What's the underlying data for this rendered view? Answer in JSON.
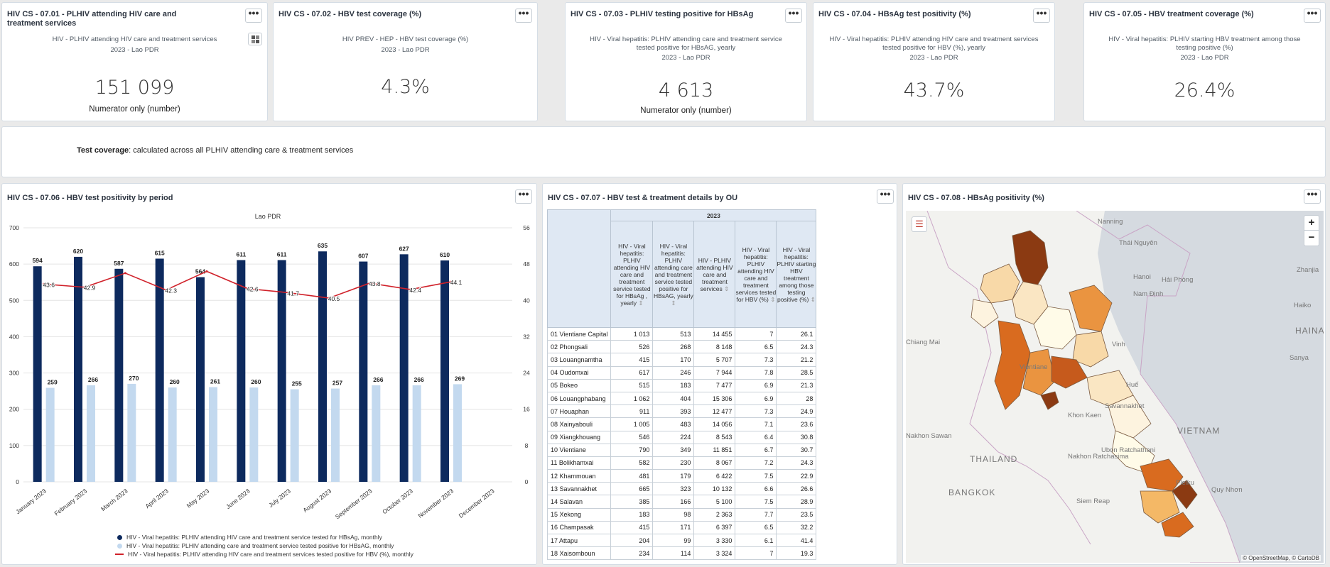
{
  "kpis": [
    {
      "title": "HIV CS - 07.01 - PLHIV attending HIV care and treatment services",
      "subtitle": "HIV - PLHIV attending HIV care and treatment services",
      "period": "2023 - Lao PDR",
      "value": "151 099",
      "unit": "Numerator only (number)"
    },
    {
      "title": "HIV CS - 07.02 - HBV test coverage (%)",
      "subtitle": "HIV PREV - HEP - HBV test coverage (%)",
      "period": "2023 - Lao PDR",
      "value": "4.3%",
      "unit": ""
    },
    {
      "title": "HIV CS - 07.03 - PLHIV testing positive for HBsAg",
      "subtitle": "HIV - Viral hepatitis: PLHIV attending care and treatment service tested positive for HBsAG, yearly",
      "period": "2023 - Lao PDR",
      "value": "4 613",
      "unit": "Numerator only (number)"
    },
    {
      "title": "HIV CS - 07.04 - HBsAg test positivity (%)",
      "subtitle": "HIV - Viral hepatitis: PLHIV attending HIV care and treatment services tested positive for HBV (%), yearly",
      "period": "2023 - Lao PDR",
      "value": "43.7%",
      "unit": ""
    },
    {
      "title": "HIV CS - 07.05 - HBV treatment coverage (%)",
      "subtitle": "HIV - Viral hepatitis: PLHIV starting HBV treatment among those testing positive (%)",
      "period": "2023 - Lao PDR",
      "value": "26.4%",
      "unit": ""
    }
  ],
  "menu_glyph": "•••",
  "note": {
    "bold": "Test coverage",
    "text": ": calculated across all PLHIV attending care & treatment services"
  },
  "chart_card": {
    "title": "HIV CS - 07.06 - HBV test positivity by period"
  },
  "chart_data": {
    "type": "bar",
    "title": "Lao PDR",
    "categories": [
      "January 2023",
      "February 2023",
      "March 2023",
      "April 2023",
      "May 2023",
      "June 2023",
      "July 2023",
      "August 2023",
      "September 2023",
      "October 2023",
      "November 2023",
      "December 2023"
    ],
    "series": [
      {
        "name": "HIV - Viral hepatitis: PLHIV attending HIV care and treatment service tested for HBsAg, monthly",
        "kind": "bar",
        "color": "#0d2a5e",
        "values": [
          594,
          620,
          587,
          615,
          564,
          611,
          611,
          635,
          607,
          627,
          610,
          null
        ]
      },
      {
        "name": "HIV - Viral hepatitis: PLHIV attending care and treatment service tested positive for HBsAG, monthly",
        "kind": "bar",
        "color": "#c3d9ef",
        "values": [
          259,
          266,
          270,
          260,
          261,
          260,
          255,
          257,
          266,
          266,
          269,
          null
        ]
      },
      {
        "name": "HIV - Viral hepatitis: PLHIV attending HIV care and treatment services tested positive for HBV (%), monthly",
        "kind": "line",
        "axis": "right",
        "color": "#d0212a",
        "values": [
          43.6,
          42.9,
          46.0,
          42.3,
          46.4,
          42.6,
          41.7,
          40.5,
          43.8,
          42.4,
          44.1,
          null
        ],
        "labels": [
          "43.6",
          "42.9",
          "",
          "42.3",
          "",
          "42.6",
          "41.7",
          "40.5",
          "43.8",
          "42.4",
          "44.1",
          ""
        ]
      }
    ],
    "ylim": [
      0,
      700
    ],
    "yticks": [
      0,
      100,
      200,
      300,
      400,
      500,
      600,
      700
    ],
    "y2lim": [
      0,
      56
    ],
    "y2ticks": [
      0,
      8,
      16,
      24,
      32,
      40,
      48,
      56
    ],
    "grid": true,
    "legend": "bottom"
  },
  "table_card": {
    "title": "HIV CS - 07.07 - HBV test & treatment details by OU",
    "year": "2023",
    "headers": [
      "HIV - Viral hepatitis: PLHIV attending HIV care and treatment service tested for HBsAg , yearly",
      "HIV - Viral hepatitis: PLHIV attending care and treatment service tested positive for HBsAG, yearly",
      "HIV - PLHIV attending HIV care and treatment services",
      "HIV - Viral hepatitis: PLHIV attending HIV care and treatment services tested for HBV (%)",
      "HIV - Viral hepatitis: PLHIV starting HBV treatment among those testing positive (%)"
    ],
    "rows": [
      [
        "01 Vientiane Capital",
        "1 013",
        "513",
        "14 455",
        "7",
        "26.1"
      ],
      [
        "02 Phongsali",
        "526",
        "268",
        "8 148",
        "6.5",
        "24.3"
      ],
      [
        "03 Louangnamtha",
        "415",
        "170",
        "5 707",
        "7.3",
        "21.2"
      ],
      [
        "04 Oudomxai",
        "617",
        "246",
        "7 944",
        "7.8",
        "28.5"
      ],
      [
        "05 Bokeo",
        "515",
        "183",
        "7 477",
        "6.9",
        "21.3"
      ],
      [
        "06 Louangphabang",
        "1 062",
        "404",
        "15 306",
        "6.9",
        "28"
      ],
      [
        "07 Houaphan",
        "911",
        "393",
        "12 477",
        "7.3",
        "24.9"
      ],
      [
        "08 Xainyabouli",
        "1 005",
        "483",
        "14 056",
        "7.1",
        "23.6"
      ],
      [
        "09 Xiangkhouang",
        "546",
        "224",
        "8 543",
        "6.4",
        "30.8"
      ],
      [
        "10 Vientiane",
        "790",
        "349",
        "11 851",
        "6.7",
        "30.7"
      ],
      [
        "11 Bolikhamxai",
        "582",
        "230",
        "8 067",
        "7.2",
        "24.3"
      ],
      [
        "12 Khammouan",
        "481",
        "179",
        "6 422",
        "7.5",
        "22.9"
      ],
      [
        "13 Savannakhet",
        "665",
        "323",
        "10 132",
        "6.6",
        "26.6"
      ],
      [
        "14 Salavan",
        "385",
        "166",
        "5 100",
        "7.5",
        "28.9"
      ],
      [
        "15 Xekong",
        "183",
        "98",
        "2 363",
        "7.7",
        "23.5"
      ],
      [
        "16 Champasak",
        "415",
        "171",
        "6 397",
        "6.5",
        "32.2"
      ],
      [
        "17 Attapu",
        "204",
        "99",
        "3 330",
        "6.1",
        "41.4"
      ],
      [
        "18 Xaisomboun",
        "234",
        "114",
        "3 324",
        "7",
        "19.3"
      ]
    ]
  },
  "map_card": {
    "title": "HIV CS - 07.08 - HBsAg positivity (%)",
    "zoom_in": "+",
    "zoom_out": "−",
    "attribution": "© OpenStreetMap, © CartoDB",
    "labels": [
      "Nanning",
      "Thái Nguyên",
      "Hanoi",
      "Hải Phòng",
      "Nam Định",
      "Zhanjia",
      "Haiko",
      "HAINAN",
      "Sanya",
      "Vinh",
      "Chiang Mai",
      "Huế",
      "Vientiane",
      "Savannakhet",
      "Khon Kaen",
      "Nakhon Sawan",
      "Ubon Ratchathani",
      "THAILAND",
      "Nakhon Ratchasima",
      "BANGKOK",
      "VIETNAM",
      "Pleiku",
      "Quy Nhơn",
      "Siem Reap"
    ]
  }
}
